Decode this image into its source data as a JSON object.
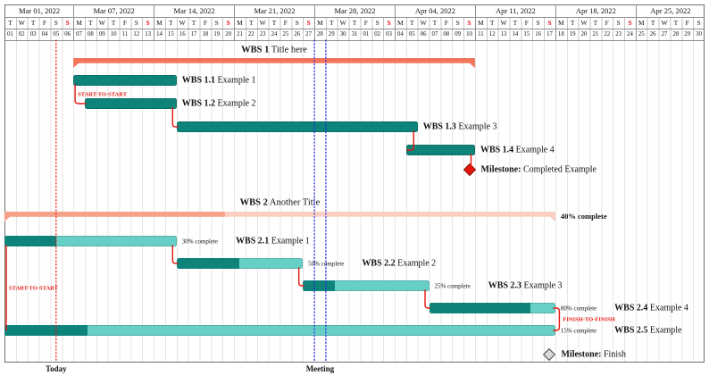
{
  "chart_data": {
    "type": "gantt",
    "title": "",
    "time_axis": {
      "start": "2022-03-01",
      "end": "2022-04-30",
      "unit": "day",
      "total_days": 61
    },
    "calendar": {
      "weeks": [
        {
          "label": "Mar 01, 2022",
          "days": 6
        },
        {
          "label": "Mar 07, 2022",
          "days": 7
        },
        {
          "label": "Mar 14, 2022",
          "days": 7
        },
        {
          "label": "Mar 21, 2022",
          "days": 7
        },
        {
          "label": "Mar 28, 2022",
          "days": 7
        },
        {
          "label": "Apr 04, 2022",
          "days": 7
        },
        {
          "label": "Apr 11, 2022",
          "days": 7
        },
        {
          "label": "Apr 18, 2022",
          "days": 7
        },
        {
          "label": "Apr 25, 2022",
          "days": 6
        }
      ],
      "day_letters": [
        "T",
        "W",
        "T",
        "F",
        "S",
        "S",
        "M",
        "T",
        "W",
        "T",
        "F",
        "S",
        "S",
        "M",
        "T",
        "W",
        "T",
        "F",
        "S",
        "S",
        "M",
        "T",
        "W",
        "T",
        "F",
        "S",
        "S",
        "M",
        "T",
        "W",
        "T",
        "F",
        "S",
        "S",
        "M",
        "T",
        "W",
        "T",
        "F",
        "S",
        "S",
        "M",
        "T",
        "W",
        "T",
        "F",
        "S",
        "S",
        "M",
        "T",
        "W",
        "T",
        "F",
        "S",
        "S",
        "M",
        "T",
        "W",
        "T",
        "F",
        "S"
      ],
      "day_numbers": [
        "01",
        "02",
        "03",
        "04",
        "05",
        "06",
        "07",
        "08",
        "09",
        "10",
        "11",
        "12",
        "13",
        "14",
        "15",
        "16",
        "17",
        "18",
        "19",
        "20",
        "21",
        "22",
        "23",
        "24",
        "25",
        "26",
        "27",
        "28",
        "29",
        "30",
        "31",
        "01",
        "02",
        "03",
        "04",
        "05",
        "06",
        "07",
        "08",
        "09",
        "10",
        "11",
        "12",
        "13",
        "14",
        "15",
        "16",
        "17",
        "18",
        "19",
        "20",
        "21",
        "22",
        "23",
        "24",
        "25",
        "26",
        "27",
        "28",
        "29",
        "30"
      ],
      "sunday_indices": [
        5,
        12,
        19,
        26,
        33,
        40,
        47,
        54
      ]
    },
    "tasks": [
      {
        "id": "g1",
        "kind": "group",
        "label_bold": "WBS 1",
        "label_rest": "Title here",
        "start": 6,
        "end": 40,
        "start_date": "2022-03-07",
        "end_date": "2022-04-10",
        "fill": "#f3755c"
      },
      {
        "id": "t11",
        "kind": "task",
        "label_bold": "WBS 1.1",
        "label_rest": "Example 1",
        "start": 6,
        "end": 14,
        "start_date": "2022-03-07",
        "end_date": "2022-03-15"
      },
      {
        "id": "t12",
        "kind": "task",
        "label_bold": "WBS 1.2",
        "label_rest": "Example 2",
        "start": 7,
        "end": 14,
        "start_date": "2022-03-08",
        "end_date": "2022-03-15"
      },
      {
        "id": "t13",
        "kind": "task",
        "label_bold": "WBS 1.3",
        "label_rest": "Example 3",
        "start": 15,
        "end": 35,
        "start_date": "2022-03-16",
        "end_date": "2022-04-05"
      },
      {
        "id": "t14",
        "kind": "task",
        "label_bold": "WBS 1.4",
        "label_rest": "Example 4",
        "start": 35,
        "end": 40,
        "start_date": "2022-04-05",
        "end_date": "2022-04-10"
      },
      {
        "id": "m1",
        "kind": "milestone",
        "label_bold": "Milestone:",
        "label_rest": "Completed Example",
        "day": 40,
        "date": "2022-04-10",
        "fill": "#e3170d",
        "stroke": "#8f1007"
      },
      {
        "id": "g2",
        "kind": "group",
        "label_bold": "WBS 2",
        "label_rest": "Another Title",
        "start": 0,
        "end": 47,
        "start_date": "2022-03-01",
        "end_date": "2022-04-17",
        "progress": 40,
        "progress_label": "40% complete",
        "fill": "#f6a28b",
        "fill2": "#fbcfc1"
      },
      {
        "id": "t21",
        "kind": "task",
        "label_bold": "WBS 2.1",
        "label_rest": "Example 1",
        "start": 0,
        "end": 14,
        "start_date": "2022-03-01",
        "end_date": "2022-03-15",
        "progress": 30,
        "progress_label": "30% complete"
      },
      {
        "id": "t22",
        "kind": "task",
        "label_bold": "WBS 2.2",
        "label_rest": "Example 2",
        "start": 15,
        "end": 25,
        "start_date": "2022-03-16",
        "end_date": "2022-03-26",
        "progress": 50,
        "progress_label": "50% complete"
      },
      {
        "id": "t23",
        "kind": "task",
        "label_bold": "WBS 2.3",
        "label_rest": "Example 3",
        "start": 26,
        "end": 36,
        "start_date": "2022-03-27",
        "end_date": "2022-04-06",
        "progress": 25,
        "progress_label": "25% complete"
      },
      {
        "id": "t24",
        "kind": "task",
        "label_bold": "WBS 2.4",
        "label_rest": "Example 4",
        "start": 37,
        "end": 47,
        "start_date": "2022-04-07",
        "end_date": "2022-04-17",
        "progress": 80,
        "progress_label": "80% complete"
      },
      {
        "id": "t25",
        "kind": "task",
        "label_bold": "WBS 2.5",
        "label_rest": "Example",
        "start": 0,
        "end": 47,
        "start_date": "2022-03-01",
        "end_date": "2022-04-17",
        "progress": 15,
        "progress_label": "15% complete"
      },
      {
        "id": "m2",
        "kind": "milestone",
        "label_bold": "Milestone:",
        "label_rest": "Finish",
        "day": 47,
        "date": "2022-04-17",
        "fill": "#d9d9d9",
        "stroke": "#4a4a4a"
      }
    ],
    "links": [
      {
        "from": "t11",
        "to": "t12",
        "type": "start-to-start",
        "label": "START-TO-START"
      },
      {
        "from": "t12",
        "to": "t13",
        "type": "finish-to-start"
      },
      {
        "from": "t13",
        "to": "t14",
        "type": "finish-to-start"
      },
      {
        "from": "t14",
        "to": "m1",
        "type": "finish-to-milestone"
      },
      {
        "from": "t21",
        "to": "t22",
        "type": "finish-to-start"
      },
      {
        "from": "t22",
        "to": "t23",
        "type": "finish-to-start"
      },
      {
        "from": "t23",
        "to": "t24",
        "type": "finish-to-start"
      },
      {
        "from": "t24",
        "to": "t25",
        "type": "finish-to-finish",
        "label": "FINISH-TO-FINISH"
      },
      {
        "from": "t21",
        "to": "t25",
        "type": "start-to-start",
        "label": "START-TO-START"
      }
    ],
    "markers": {
      "today": {
        "label": "Today",
        "date": "2022-03-05",
        "day": 4,
        "color": "#e3170d"
      },
      "meeting": {
        "label": "Meeting",
        "date": "2022-03-28",
        "day_start": 27,
        "day_end": 28,
        "color": "#2727e8"
      }
    },
    "colors": {
      "task_done": "#0e837a",
      "task_remaining": "#66cfc6",
      "link": "#e3170d",
      "sunday": "#e3170d",
      "grid": "#e5e5e5",
      "frame": "#6e6e6e"
    }
  }
}
